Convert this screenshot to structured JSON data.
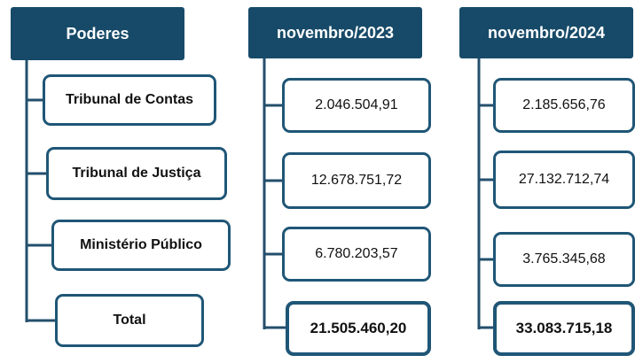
{
  "columns": [
    {
      "header": "Poderes",
      "items": [
        "Tribunal de Contas",
        "Tribunal de Justiça",
        "Ministério Público",
        "Total"
      ]
    },
    {
      "header": "novembro/2023",
      "items": [
        "2.046.504,91",
        "12.678.751,72",
        "6.780.203,57",
        "21.505.460,20"
      ]
    },
    {
      "header": "novembro/2024",
      "items": [
        "2.185.656,76",
        "27.132.712,74",
        "3.765.345,68",
        "33.083.715,18"
      ]
    }
  ]
}
